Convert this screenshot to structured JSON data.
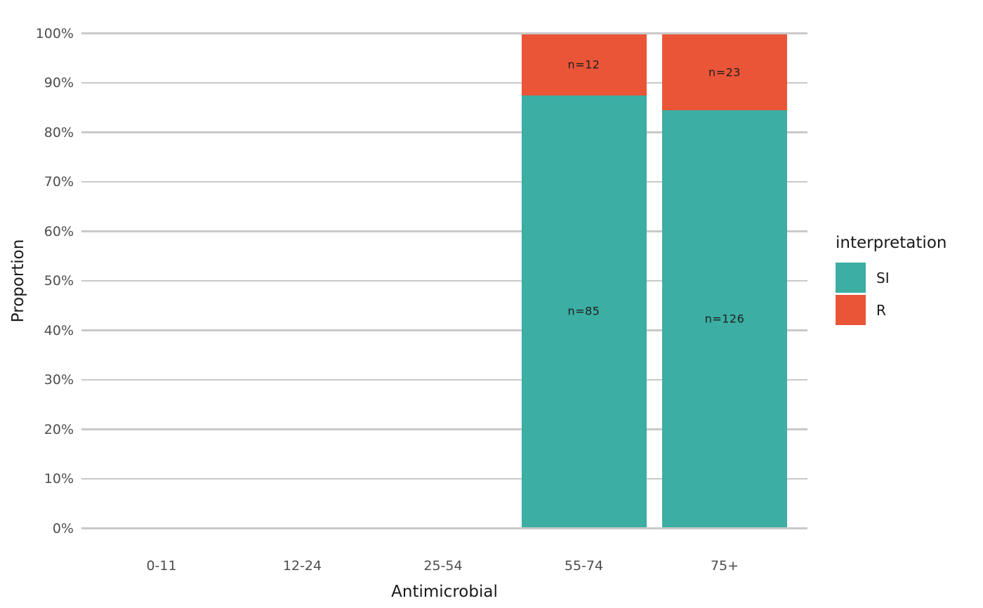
{
  "chart_data": {
    "type": "bar",
    "stacked": true,
    "percent": true,
    "title": "",
    "xlabel": "Antimicrobial",
    "ylabel": "Proportion",
    "categories": [
      "0-11",
      "12-24",
      "25-54",
      "55-74",
      "75+"
    ],
    "series": [
      {
        "name": "SI",
        "color": "#3CAEA3",
        "counts": [
          null,
          null,
          null,
          85,
          126
        ],
        "labels": [
          null,
          null,
          null,
          "n=85",
          "n=126"
        ]
      },
      {
        "name": "R",
        "color": "#EA5538",
        "counts": [
          null,
          null,
          null,
          12,
          23
        ],
        "labels": [
          null,
          null,
          null,
          "n=12",
          "n=23"
        ]
      }
    ],
    "y_ticks": [
      "0%",
      "10%",
      "20%",
      "30%",
      "40%",
      "50%",
      "60%",
      "70%",
      "80%",
      "90%",
      "100%"
    ],
    "ylim": [
      0,
      1
    ],
    "grid": true,
    "gridline_color": "#C9C9C9",
    "background": "#FFFFFF",
    "legend": {
      "title": "interpretation",
      "position": "right",
      "items": [
        {
          "label": "SI",
          "color": "#3CAEA3"
        },
        {
          "label": "R",
          "color": "#EA5538"
        }
      ]
    }
  }
}
